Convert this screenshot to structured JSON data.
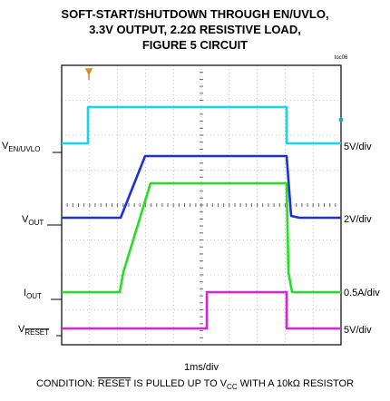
{
  "title": [
    "SOFT-START/SHUTDOWN THROUGH EN/UVLO,",
    "3.3V OUTPUT, 2.2Ω RESISTIVE LOAD,",
    "FIGURE 5 CIRCUIT"
  ],
  "tag": "toc06",
  "channels": [
    {
      "label": "V",
      "sub": "EN/UVLO",
      "scale": "5V/div"
    },
    {
      "label": "V",
      "sub": "OUT",
      "scale": "2V/div"
    },
    {
      "label": "I",
      "sub": "OUT",
      "scale": "0.5A/div"
    },
    {
      "label": "V",
      "sub": "RESET",
      "scale": "5V/div"
    }
  ],
  "x_label": "1ms/div",
  "condition": {
    "pre": "CONDITION: ",
    "overline": "RESET",
    "mid": " IS PULLED UP TO V",
    "sub": "CC",
    "post": " WITH A 10kΩ RESISTOR"
  }
}
